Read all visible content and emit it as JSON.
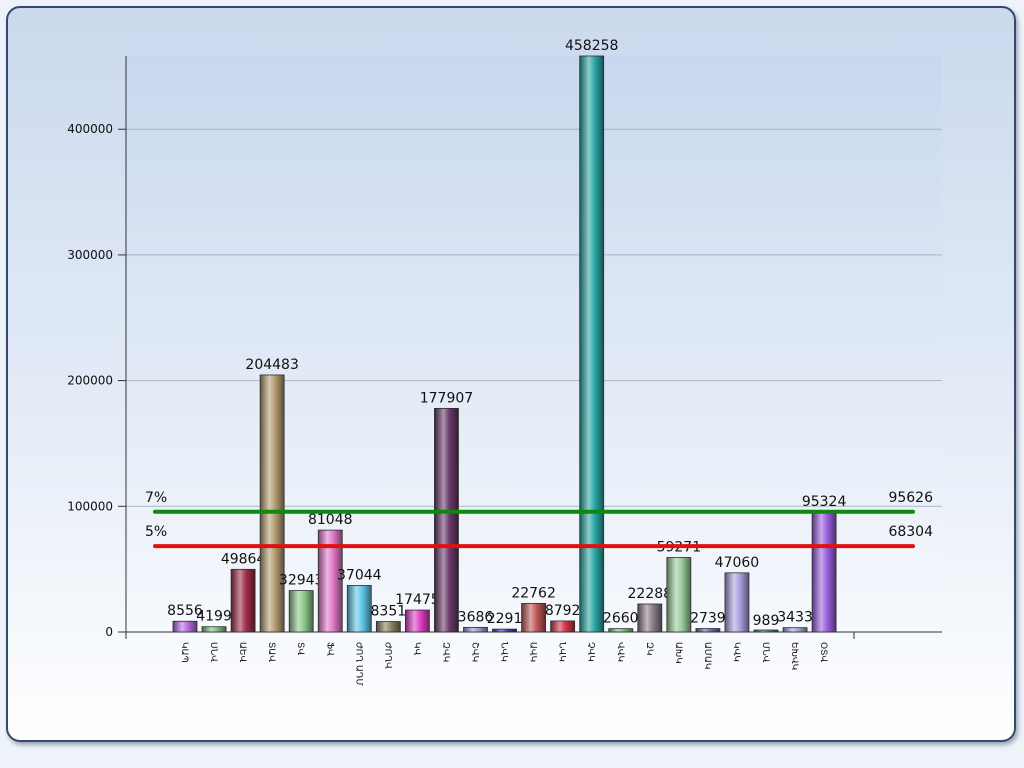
{
  "chart_data": {
    "type": "bar",
    "title": "",
    "xlabel": "",
    "ylabel": "",
    "ylim": [
      0,
      458258
    ],
    "yticks": [
      0,
      100000,
      200000,
      300000,
      400000
    ],
    "grid": true,
    "legend": "none",
    "categories": [
      "ԿԱՊ",
      "ՍՆՎ",
      "ԱԵՎ",
      "ՏԱՎ",
      "ՏՎ",
      "ՖՎ",
      "ԺՈՂ ԱԴՄ",
      "ԺՈՂՎ",
      "ԿՎ",
      "ԶՎԿ",
      "ՇՎԿ",
      "ՆՎԿ",
      "ԱՎԿ",
      "ՆՎԿ",
      "ՉՎԿ",
      "ՎՎԿ",
      "ԶԿ",
      "ԱԽԿ",
      "ԱՄԱԿ",
      "ԿՎԿ",
      "ՄՆՎ",
      "ԵԽՎԿ",
      "ՕՏՎ"
    ],
    "values": [
      8556,
      4199,
      49864,
      204483,
      32943,
      81048,
      37044,
      8351,
      17475,
      177907,
      3686,
      2291,
      22762,
      8792,
      458258,
      2660,
      22288,
      59271,
      2739,
      47060,
      989,
      3433,
      95324
    ],
    "value_labels": [
      "8556",
      "4199",
      "49864",
      "204483",
      "32943",
      "81048",
      "37044",
      "8351",
      "17475",
      "177907",
      "3686",
      "2291",
      "22762",
      "8792",
      "458258",
      "2660",
      "22288",
      "59271",
      "2739",
      "47060",
      "989",
      "3433",
      "95324"
    ],
    "colors": [
      "#b86be0",
      "#7cc47c",
      "#a02e4a",
      "#b49c72",
      "#8cc88c",
      "#e079c6",
      "#5ec8e8",
      "#8b8260",
      "#e040c4",
      "#6a3a6a",
      "#9a9ad6",
      "#3c3cb4",
      "#c05a5a",
      "#d43446",
      "#2ca8a6",
      "#74c474",
      "#8e7e8a",
      "#9ccc9c",
      "#6464c0",
      "#aea0e0",
      "#3c9060",
      "#a0a8d8",
      "#9c60e0"
    ],
    "reference_lines": [
      {
        "label": "7%",
        "value": 95626,
        "value_label": "95626",
        "color": "#0b8a0b"
      },
      {
        "label": "5%",
        "value": 68304,
        "value_label": "68304",
        "color": "#e01010"
      }
    ]
  }
}
